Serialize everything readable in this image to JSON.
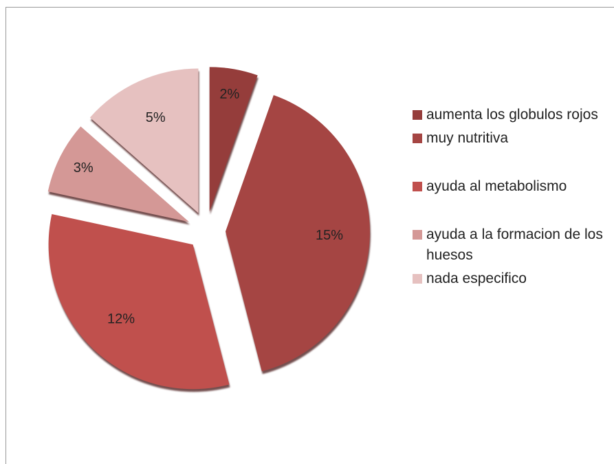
{
  "chart_data": {
    "type": "pie",
    "categories": [
      "aumenta los globulos rojos",
      "muy nutritiva",
      "ayuda al metabolismo",
      "ayuda a la formacion de los huesos",
      "nada especifico"
    ],
    "values": [
      2,
      15,
      12,
      3,
      5
    ],
    "value_labels": [
      "2%",
      "15%",
      "12%",
      "3%",
      "5%"
    ],
    "colors": [
      "#953d3b",
      "#a54543",
      "#c0504d",
      "#d49896",
      "#e6c1c0"
    ],
    "legend": "right"
  }
}
